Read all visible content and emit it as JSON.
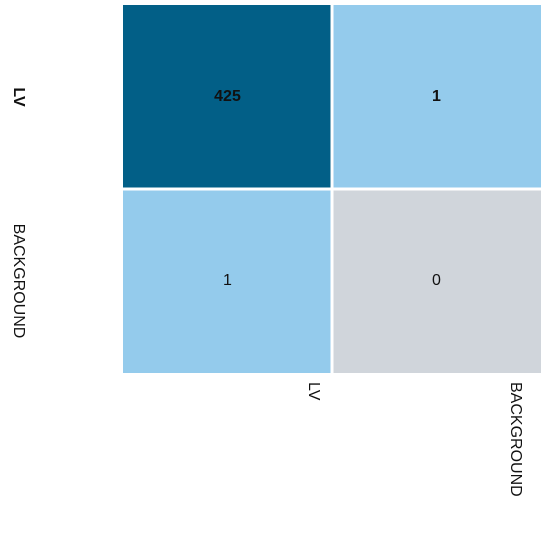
{
  "chart_data": {
    "type": "heatmap",
    "rows": [
      "LV",
      "BACKGROUND"
    ],
    "columns": [
      "LV",
      "BACKGROUND"
    ],
    "values": [
      [
        425,
        1
      ],
      [
        1,
        0
      ]
    ],
    "colors": [
      [
        "#025f87",
        "#94cbec"
      ],
      [
        "#94cbec",
        "#d0d5db"
      ]
    ]
  }
}
